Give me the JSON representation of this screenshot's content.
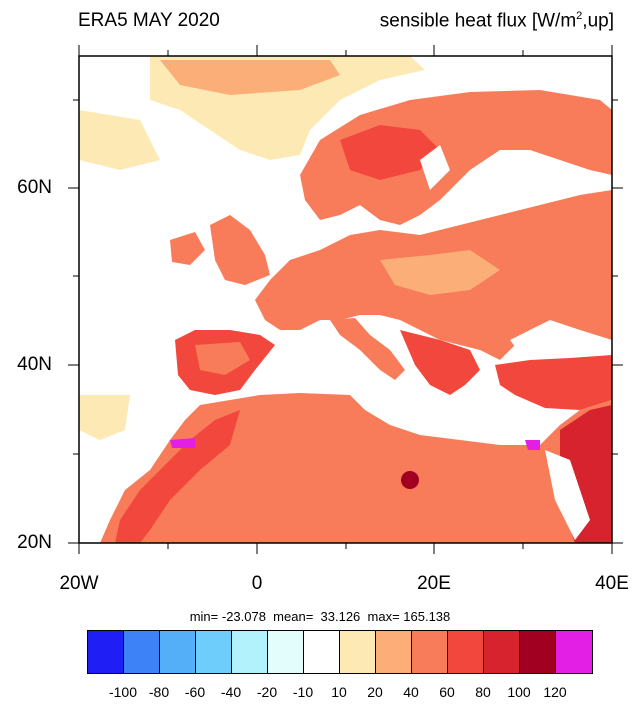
{
  "header": {
    "title_left": "ERA5 MAY 2020",
    "title_right_pre": "sensible heat flux [W/m",
    "title_right_sup": "2",
    "title_right_post": ",up]"
  },
  "map": {
    "lat_labels": [
      "60N",
      "40N",
      "20N"
    ],
    "lon_labels": [
      "20W",
      "0",
      "20E",
      "40E"
    ],
    "lat_range": [
      20,
      75
    ],
    "lon_range": [
      -20,
      40
    ]
  },
  "stats": {
    "text": "min= -23.078  mean=  33.126  max= 165.138"
  },
  "colorbar": {
    "colors": [
      "#1f1ff5",
      "#3e82f7",
      "#55aef8",
      "#6fcdfb",
      "#b1f2fc",
      "#e3fdfd",
      "#ffffff",
      "#fde9b4",
      "#fbae78",
      "#f87c5a",
      "#f2473d",
      "#d6232e",
      "#a10020",
      "#e31ee5"
    ],
    "labels": [
      "-100",
      "-80",
      "-60",
      "-40",
      "-20",
      "-10",
      "10",
      "20",
      "40",
      "60",
      "80",
      "100",
      "120"
    ]
  }
}
